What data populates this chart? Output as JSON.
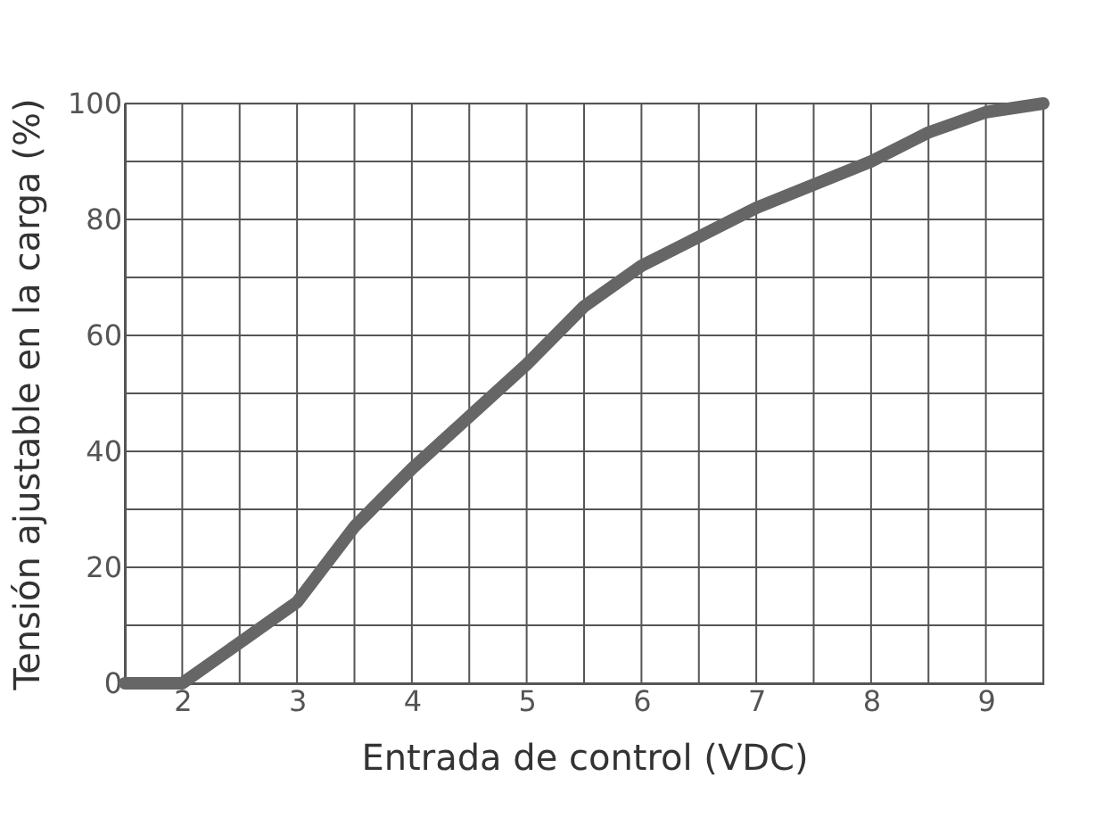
{
  "chart_data": {
    "type": "line",
    "xlabel": "Entrada de control (VDC)",
    "ylabel": "Tensión ajustable en la carga (%)",
    "x": [
      1.5,
      2,
      2.5,
      3,
      3.5,
      4,
      4.5,
      5,
      5.5,
      6,
      6.5,
      7,
      7.5,
      8,
      8.5,
      9,
      9.5
    ],
    "series": [
      {
        "color": "#666666",
        "values": [
          0,
          0,
          7,
          14,
          27,
          37,
          46,
          55,
          65,
          72,
          77,
          82,
          86,
          90,
          95,
          98.5,
          100
        ]
      }
    ],
    "xlim": [
      1.5,
      9.5
    ],
    "xticks": [
      {
        "value": 1.5,
        "label": null
      },
      2,
      {
        "value": 2.5,
        "label": null
      },
      3,
      {
        "value": 3.5,
        "label": null
      },
      4,
      {
        "value": 4.5,
        "label": null
      },
      5,
      {
        "value": 5.5,
        "label": null
      },
      6,
      {
        "value": 6.5,
        "label": null
      },
      7,
      {
        "value": 7.5,
        "label": null
      },
      8,
      {
        "value": 8.5,
        "label": null
      },
      9,
      {
        "value": 9.5,
        "label": null
      }
    ],
    "ylim": [
      0,
      100
    ],
    "yticks": [
      0,
      {
        "value": 10,
        "label": null
      },
      20,
      {
        "value": 30,
        "label": null
      },
      40,
      {
        "value": 50,
        "label": null
      },
      60,
      {
        "value": 70,
        "label": null
      },
      80,
      {
        "value": 90,
        "label": null
      },
      100
    ],
    "grid": true,
    "marker": "none",
    "line_style": "solid"
  }
}
